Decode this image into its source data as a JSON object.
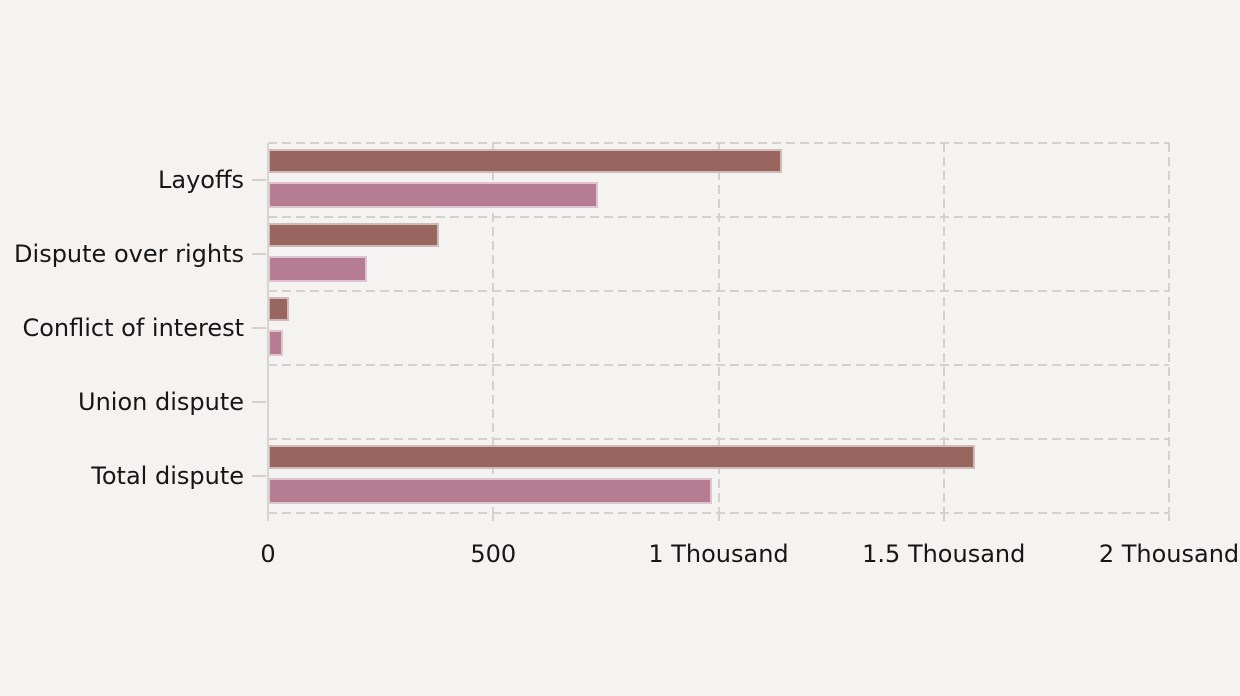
{
  "chart_data": {
    "type": "bar",
    "orientation": "horizontal",
    "title": "",
    "xlabel": "",
    "ylabel": "",
    "categories": [
      "Layoffs",
      "Dispute over rights",
      "Conflict of interest",
      "Union dispute",
      "Total dispute"
    ],
    "series": [
      {
        "name": "",
        "color": "#98665f",
        "values": [
          1142,
          380,
          47,
          0,
          1569
        ]
      },
      {
        "name": "",
        "color": "#b67d92",
        "values": [
          733,
          220,
          33,
          0,
          986
        ]
      }
    ],
    "xlim": [
      0,
      2000
    ],
    "x_ticks": [
      {
        "value": 0,
        "label": "0"
      },
      {
        "value": 500,
        "label": "500"
      },
      {
        "value": 1000,
        "label": "1 Thousand"
      },
      {
        "value": 1500,
        "label": "1.5 Thousand"
      },
      {
        "value": 2000,
        "label": "2 Thousand"
      }
    ],
    "grid": "dashed",
    "legend_position": "none"
  },
  "colors": {
    "background": "#f4f3f2",
    "gridline": "#d3d1cf",
    "axis_line": "#d7d5d3",
    "text": "#161616",
    "bar_series_1": "#98665f",
    "bar_series_2": "#b67d92"
  }
}
